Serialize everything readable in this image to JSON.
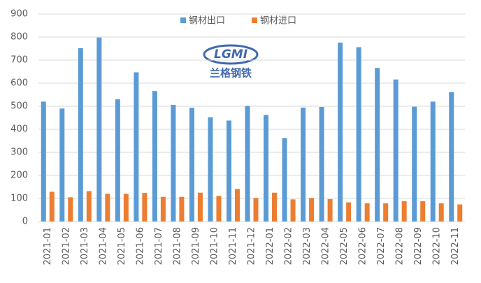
{
  "chart_data": {
    "type": "bar",
    "categories": [
      "2021-01",
      "2021-02",
      "2021-03",
      "2021-04",
      "2021-05",
      "2021-06",
      "2021-07",
      "2021-08",
      "2021-09",
      "2021-10",
      "2021-11",
      "2021-12",
      "2022-01",
      "2022-02",
      "2022-03",
      "2022-04",
      "2022-05",
      "2022-06",
      "2022-07",
      "2022-08",
      "2022-09",
      "2022-10",
      "2022-11"
    ],
    "series": [
      {
        "name": "钢材出口",
        "color": "#5b9bd5",
        "values": [
          520,
          490,
          752,
          798,
          530,
          647,
          566,
          506,
          493,
          452,
          438,
          501,
          462,
          362,
          494,
          497,
          776,
          756,
          666,
          616,
          498,
          520,
          561
        ]
      },
      {
        "name": "钢材进口",
        "color": "#ed7d31",
        "values": [
          129,
          105,
          132,
          120,
          120,
          124,
          107,
          107,
          125,
          111,
          141,
          102,
          125,
          96,
          102,
          97,
          83,
          79,
          79,
          88,
          88,
          79,
          74
        ]
      }
    ],
    "ylim": [
      0,
      900
    ],
    "yticks": [
      0,
      100,
      200,
      300,
      400,
      500,
      600,
      700,
      800,
      900
    ],
    "grid": true,
    "legend": "top",
    "watermark": [
      "LGMI",
      "兰格钢铁"
    ]
  }
}
